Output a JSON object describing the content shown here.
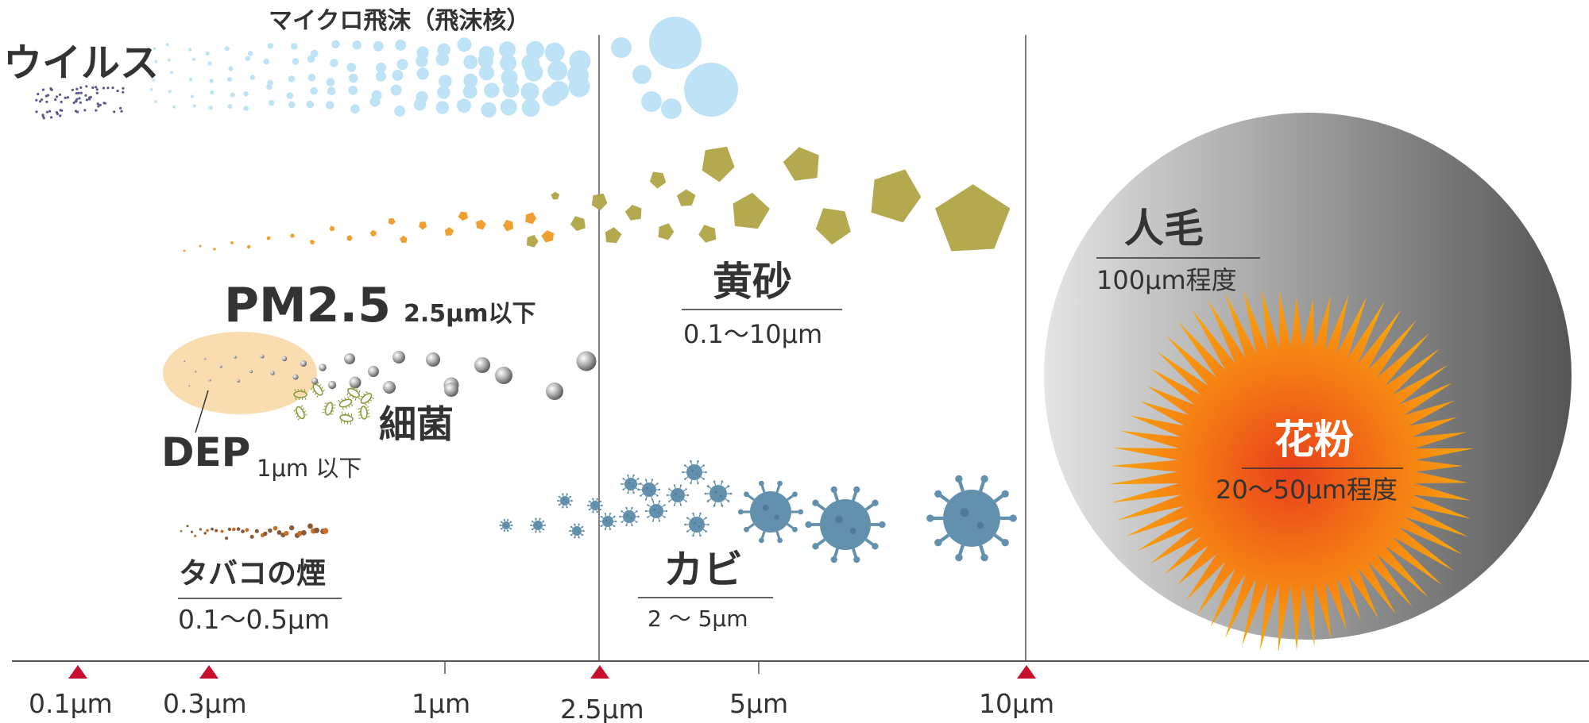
{
  "particles": {
    "virus": {
      "label": "ウイルス"
    },
    "micro_droplet": {
      "label": "マイクロ飛沫（飛沫核）"
    },
    "pm25": {
      "label": "PM2.5",
      "sub": "2.5μm以下"
    },
    "dep": {
      "label": "DEP",
      "sub": "1μm 以下"
    },
    "bacteria": {
      "label": "細菌"
    },
    "tobacco": {
      "label": "タバコの煙",
      "range": "0.1〜0.5μm"
    },
    "yellow_sand": {
      "label": "黄砂",
      "range": "0.1〜10μm"
    },
    "mold": {
      "label": "カビ",
      "range": "2 〜 5μm"
    },
    "hair": {
      "label": "人毛",
      "range": "100μm程度"
    },
    "pollen": {
      "label": "花粉",
      "range": "20〜50μm程度"
    }
  },
  "axis": {
    "ticks": [
      {
        "label": "0.1μm",
        "marker": "triangle"
      },
      {
        "label": "0.3μm",
        "marker": "triangle"
      },
      {
        "label": "1μm",
        "marker": "tick"
      },
      {
        "label": "2.5μm",
        "marker": "triangle"
      },
      {
        "label": "5μm",
        "marker": "tick"
      },
      {
        "label": "10μm",
        "marker": "triangle"
      }
    ]
  },
  "colors": {
    "text": "#333333",
    "marker": "#c8102e",
    "droplet": "#bfe3f6",
    "sand": "#b4a94e",
    "sand_small": "#f0a030",
    "mold": "#6290ad",
    "pm_ellipse": "#f9dcb0",
    "hair_light": "#e4e4e4",
    "hair_dark": "#555555",
    "pollen_outer": "#f7a60f",
    "pollen_inner": "#e8401c"
  }
}
